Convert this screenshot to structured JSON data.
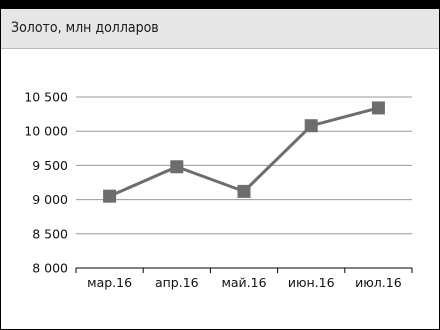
{
  "header": {
    "title": "Золото, млн долларов"
  },
  "chart_data": {
    "type": "line",
    "title": "Золото, млн долларов",
    "categories": [
      "мар.16",
      "апр.16",
      "май.16",
      "июн.16",
      "июл.16"
    ],
    "series": [
      {
        "values": [
          9050,
          9480,
          9120,
          10080,
          10340
        ]
      }
    ],
    "ylim": [
      8000,
      10500
    ],
    "yticks": [
      8000,
      8500,
      9000,
      9500,
      10000,
      10500
    ],
    "ytick_labels": [
      "8 000",
      "8 500",
      "9 000",
      "9 500",
      "10 000",
      "10 500"
    ],
    "grid": true,
    "legend": "none",
    "colors": {
      "line": "#6d6d6d",
      "marker": "#6d6d6d",
      "grid": "#9a9a9a"
    }
  }
}
